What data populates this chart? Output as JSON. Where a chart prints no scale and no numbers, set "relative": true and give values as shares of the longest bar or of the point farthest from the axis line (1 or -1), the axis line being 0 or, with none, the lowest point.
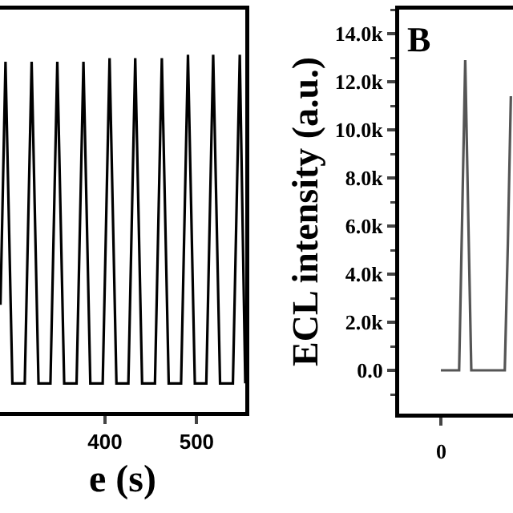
{
  "chart_data": [
    {
      "type": "line",
      "xlabel": "e (s)",
      "relative": true,
      "xlim": [
        285.5,
        553
      ],
      "xticks": [
        400,
        500
      ],
      "tick_labels": "x",
      "series": [
        {
          "color": "#000000",
          "x": [
            286,
            291.5,
            299,
            312.5,
            320,
            327.5,
            340.5,
            348,
            355.5,
            369,
            376.5,
            384,
            397.5,
            405,
            412.5,
            425.5,
            433,
            440.5,
            454.5,
            462,
            469.5,
            483,
            490.5,
            498,
            510.5,
            518,
            525.5,
            539.5,
            547,
            553
          ],
          "values": [
            0.3,
            0.98,
            0.08,
            0.08,
            0.98,
            0.08,
            0.08,
            0.98,
            0.08,
            0.08,
            0.98,
            0.08,
            0.08,
            0.99,
            0.08,
            0.08,
            0.99,
            0.08,
            0.08,
            0.99,
            0.08,
            0.08,
            1,
            0.08,
            0.08,
            1,
            0.08,
            0.08,
            1,
            0.08
          ]
        }
      ]
    },
    {
      "type": "line",
      "ylabel": "ECL intensity (a.u.)",
      "annotations": [
        "B",
        "0"
      ],
      "categories": [
        null,
        null,
        null,
        null,
        null,
        null,
        null,
        null,
        null,
        null,
        null,
        null,
        null,
        null,
        null,
        null,
        null,
        null,
        null,
        null,
        null,
        null,
        null,
        null
      ],
      "ylim": [
        -1800,
        15000
      ],
      "yticks": [
        {
          "value": 0,
          "label": "0.0"
        },
        {
          "value": 2000,
          "label": "2.0k"
        },
        {
          "value": 4000,
          "label": "4.0k"
        },
        {
          "value": 6000,
          "label": "6.0k"
        },
        {
          "value": 8000,
          "label": "8.0k"
        },
        {
          "value": 10000,
          "label": "10.0k"
        },
        {
          "value": 12000,
          "label": "12.0k"
        },
        {
          "value": 14000,
          "label": "14.0k"
        }
      ],
      "series": [
        {
          "color": "#555555",
          "values": [
            0,
            0,
            0,
            0,
            0,
            0,
            0,
            6400,
            12900,
            6400,
            0,
            0,
            0,
            0,
            0,
            0,
            0,
            0,
            0,
            0,
            0,
            0,
            5200,
            11400
          ]
        }
      ]
    }
  ]
}
